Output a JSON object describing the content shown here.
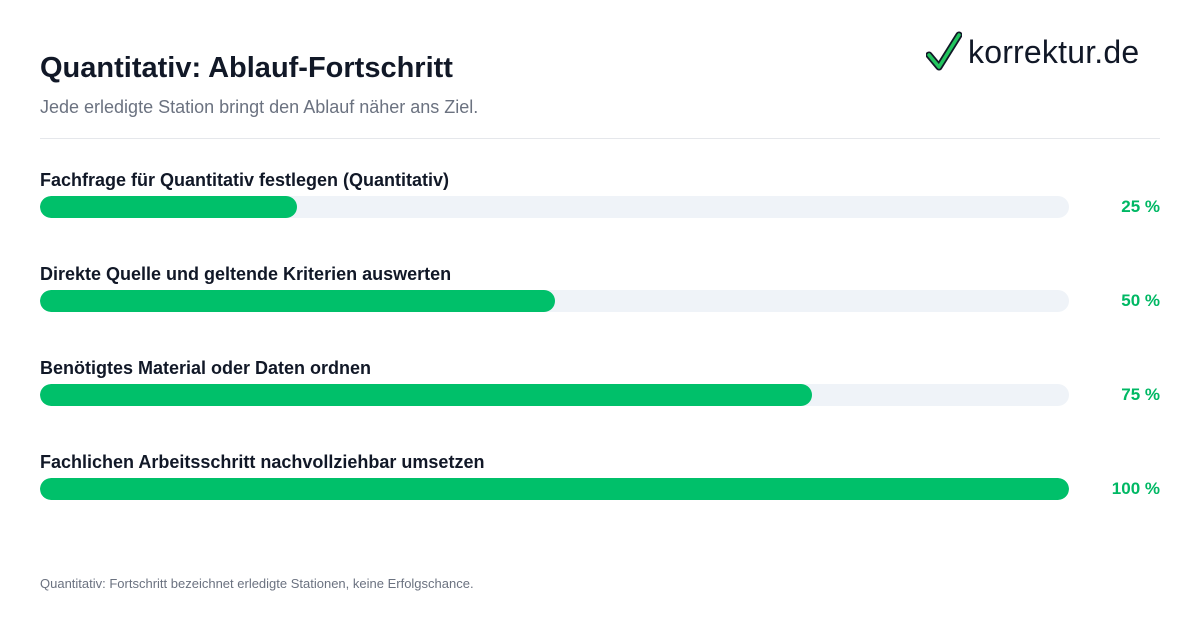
{
  "header": {
    "title": "Quantitativ: Ablauf-Fortschritt",
    "subtitle": "Jede erledigte Station bringt den Ablauf näher ans Ziel."
  },
  "logo": {
    "text": "korrektur.de",
    "icon": "checkmark-icon"
  },
  "footnote": "Quantitativ: Fortschritt bezeichnet erledigte Stationen, keine Erfolgschance.",
  "colors": {
    "accent": "#00c06a",
    "track": "#eff3f8",
    "text": "#111827",
    "muted": "#6b7280"
  },
  "chart_data": {
    "type": "bar",
    "orientation": "horizontal",
    "categories": [
      "Fachfrage für Quantitativ festlegen (Quantitativ)",
      "Direkte Quelle und geltende Kriterien auswerten",
      "Benötigtes Material oder Daten ordnen",
      "Fachlichen Arbeitsschritt nachvollziehbar umsetzen"
    ],
    "values": [
      25,
      50,
      75,
      100
    ],
    "value_labels": [
      "25 %",
      "50 %",
      "75 %",
      "100 %"
    ],
    "xlim": [
      0,
      100
    ],
    "grid": false
  }
}
